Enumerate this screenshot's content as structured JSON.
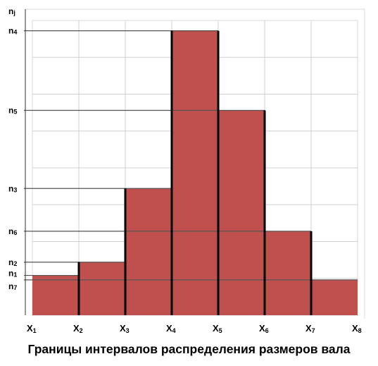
{
  "chart_data": {
    "type": "bar",
    "title": "Границы интервалов распределения размеров вала",
    "ylabel": "nj",
    "x_boundaries": [
      "X1",
      "X2",
      "X3",
      "X4",
      "X5",
      "X6",
      "X7",
      "X8"
    ],
    "x_boundary_labels": [
      {
        "main": "X",
        "sub": "1"
      },
      {
        "main": "X",
        "sub": "2"
      },
      {
        "main": "X",
        "sub": "3"
      },
      {
        "main": "X",
        "sub": "4"
      },
      {
        "main": "X",
        "sub": "5"
      },
      {
        "main": "X",
        "sub": "6"
      },
      {
        "main": "X",
        "sub": "7"
      },
      {
        "main": "X",
        "sub": "8"
      }
    ],
    "y_tick_labels": [
      {
        "main": "n",
        "sub": "j"
      },
      {
        "main": "n",
        "sub": "4"
      },
      {
        "main": "n",
        "sub": "5"
      },
      {
        "main": "n",
        "sub": "3"
      },
      {
        "main": "n",
        "sub": "6"
      },
      {
        "main": "n",
        "sub": "2"
      },
      {
        "main": "n",
        "sub": "1"
      },
      {
        "main": "n",
        "sub": "7"
      }
    ],
    "bars": [
      {
        "from": "X1",
        "to": "X2",
        "label": "n1",
        "value": 0.135
      },
      {
        "from": "X2",
        "to": "X3",
        "label": "n2",
        "value": 0.18
      },
      {
        "from": "X3",
        "to": "X4",
        "label": "n3",
        "value": 0.43
      },
      {
        "from": "X4",
        "to": "X5",
        "label": "n4",
        "value": 0.965
      },
      {
        "from": "X5",
        "to": "X6",
        "label": "n5",
        "value": 0.695
      },
      {
        "from": "X6",
        "to": "X7",
        "label": "n6",
        "value": 0.285
      },
      {
        "from": "X7",
        "to": "X8",
        "label": "n7",
        "value": 0.12
      }
    ],
    "bar_color": "#c0504d",
    "grid": true
  }
}
